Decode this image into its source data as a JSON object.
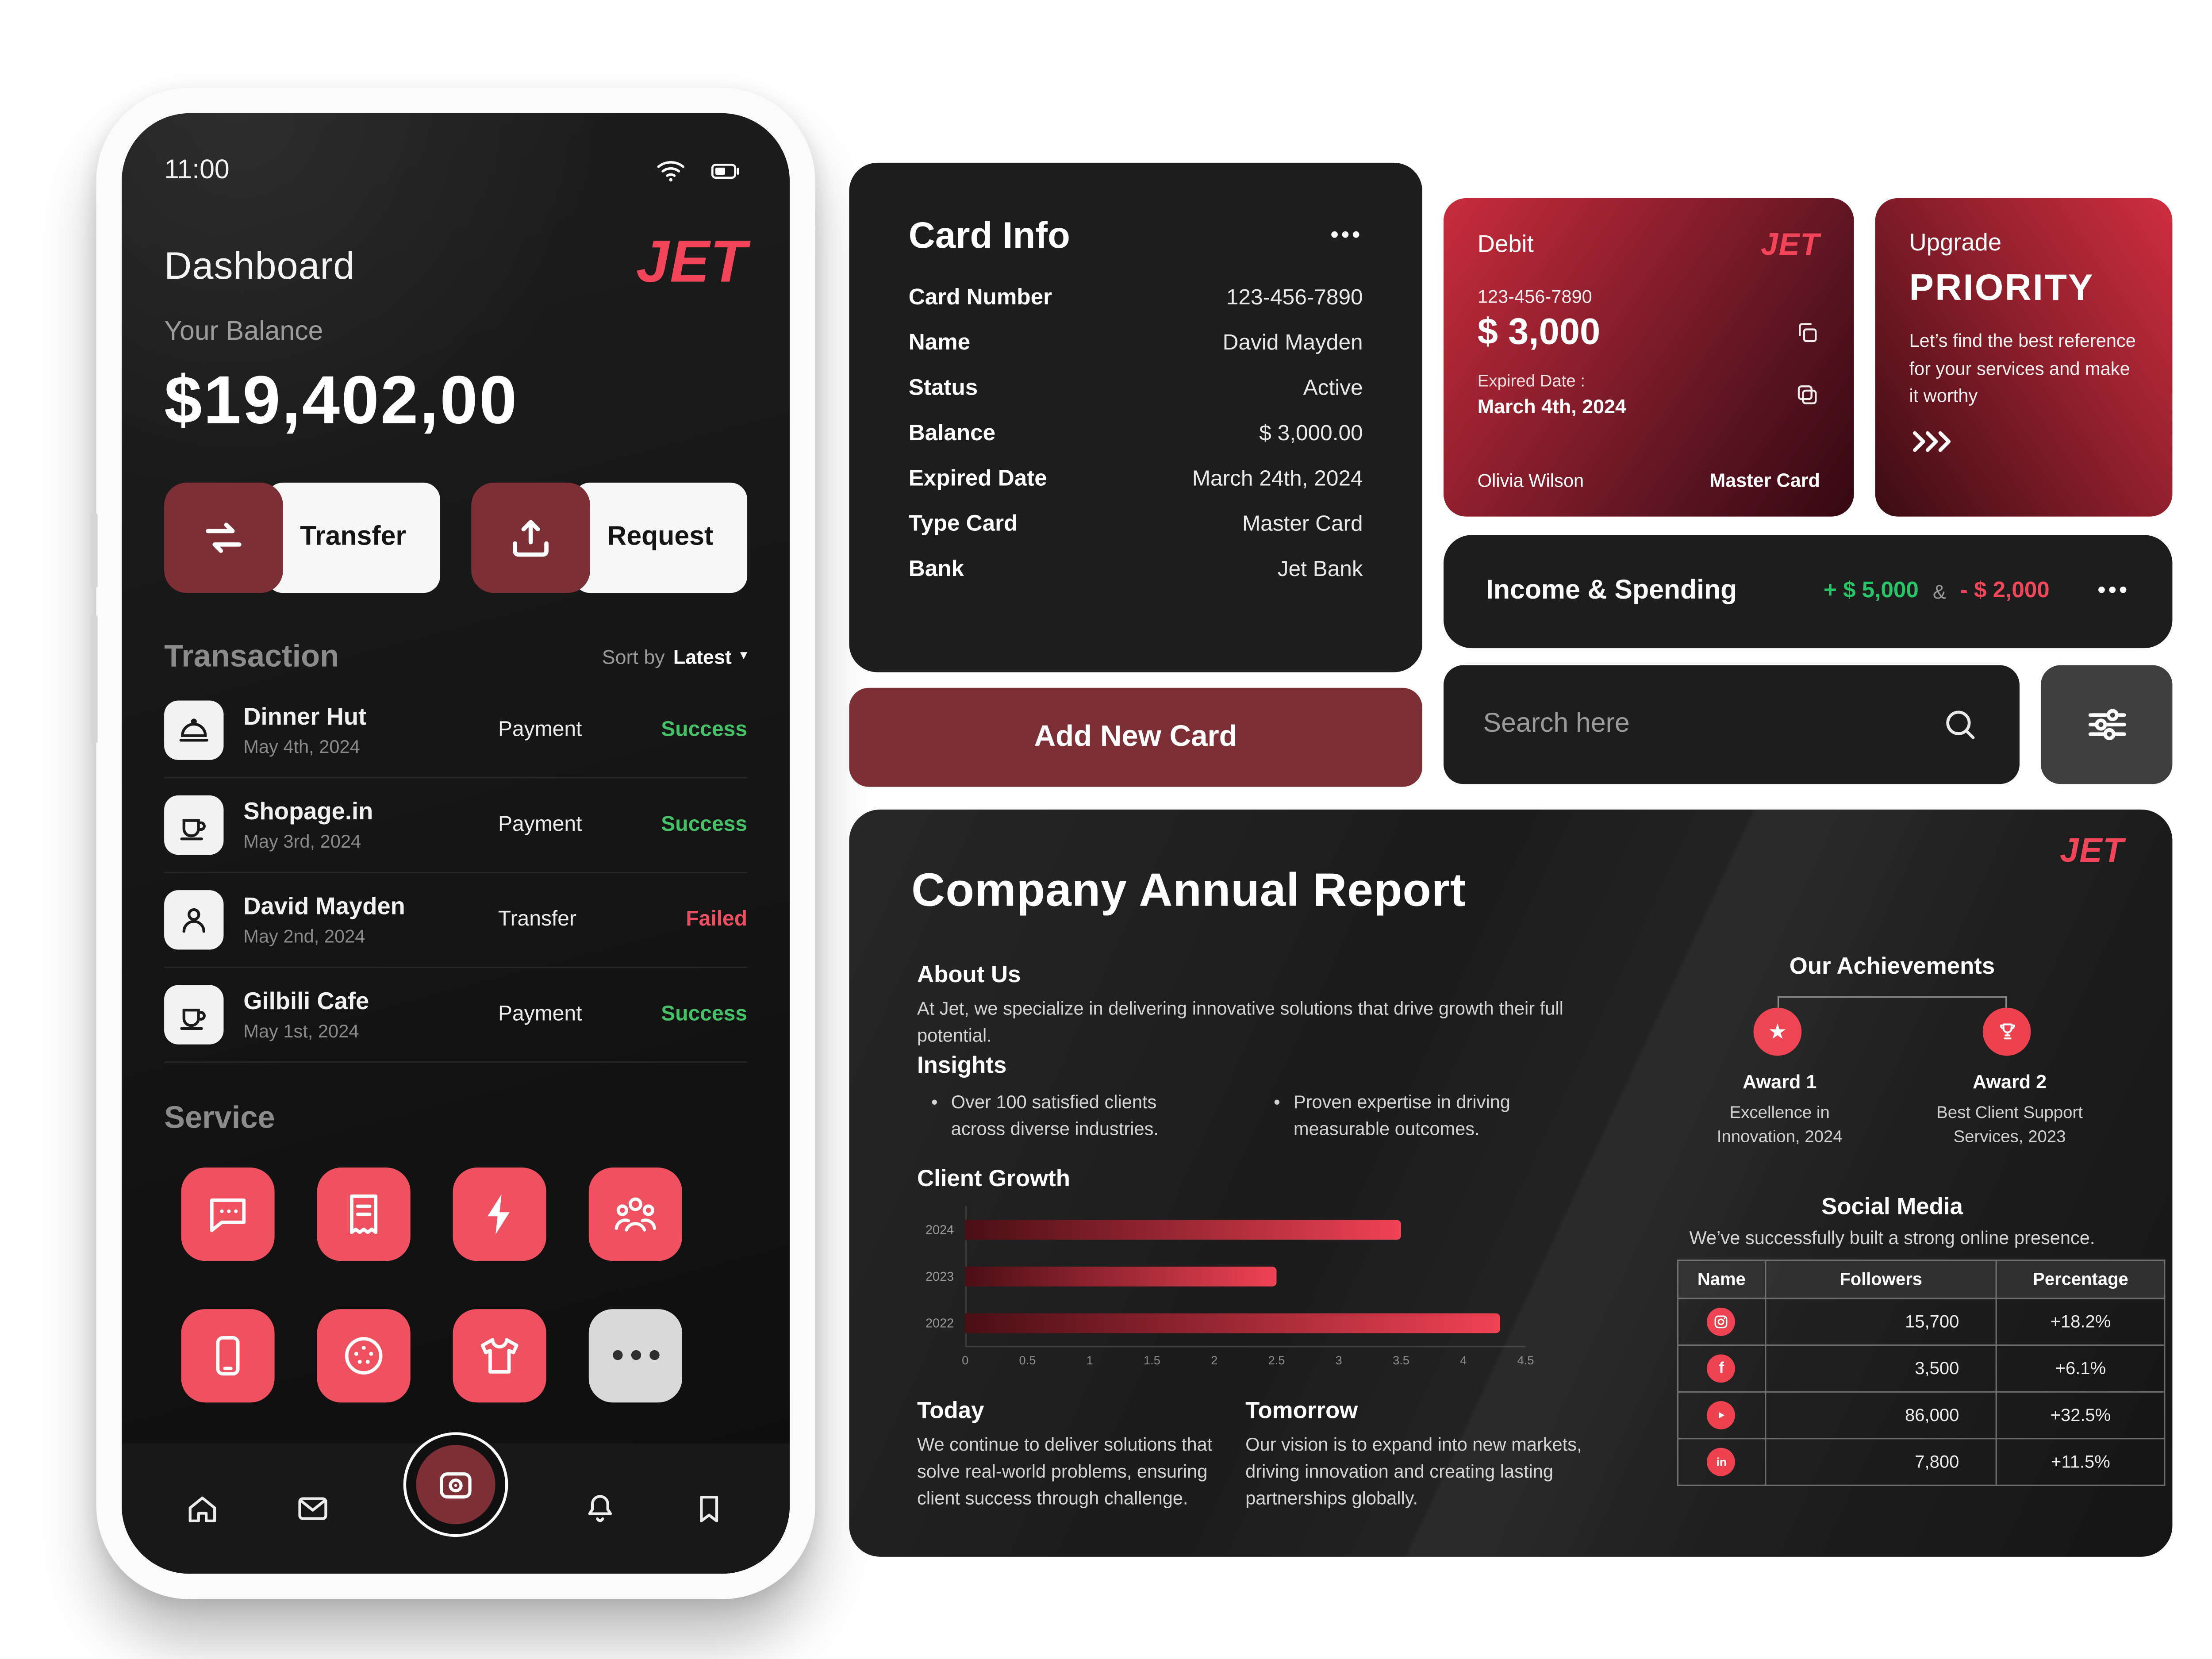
{
  "colors": {
    "accent_red": "#f2455a",
    "tile_red": "#ef5160",
    "dark_red": "#7d2f36",
    "success_green": "#45c268",
    "failed_red": "#ee4f63",
    "income_green": "#27c468",
    "spending_red": "#f2465a"
  },
  "phone": {
    "status_time": "11:00",
    "title": "Dashboard",
    "logo": "JET",
    "balance_label": "Your Balance",
    "balance": "$19,402,00",
    "transfer_label": "Transfer",
    "request_label": "Request",
    "transactions_title": "Transaction",
    "sort_label": "Sort by",
    "sort_value": "Latest",
    "sort_caret": "▾",
    "transactions": [
      {
        "name": "Dinner Hut",
        "date": "May 4th, 2024",
        "type": "Payment",
        "status": "Success"
      },
      {
        "name": "Shopage.in",
        "date": "May 3rd, 2024",
        "type": "Payment",
        "status": "Success"
      },
      {
        "name": "David Mayden",
        "date": "May 2nd, 2024",
        "type": "Transfer",
        "status": "Failed"
      },
      {
        "name": "Gilbili Cafe",
        "date": "May 1st, 2024",
        "type": "Payment",
        "status": "Success"
      }
    ],
    "service_title": "Service",
    "service_tiles": [
      "chat-icon",
      "bill-icon",
      "flash-icon",
      "team-icon",
      "phone-icon",
      "chip-icon",
      "shirt-icon",
      "more-icon"
    ],
    "nav_icons": [
      "home-icon",
      "mail-icon",
      "scan-icon",
      "bell-icon",
      "bookmark-icon"
    ]
  },
  "card_info": {
    "title": "Card Info",
    "menu": "•••",
    "rows": [
      {
        "label": "Card Number",
        "value": "123-456-7890"
      },
      {
        "label": "Name",
        "value": "David Mayden"
      },
      {
        "label": "Status",
        "value": "Active"
      },
      {
        "label": "Balance",
        "value": "$ 3,000.00"
      },
      {
        "label": "Expired Date",
        "value": "March 24th, 2024"
      },
      {
        "label": "Type Card",
        "value": "Master Card"
      },
      {
        "label": "Bank",
        "value": "Jet Bank"
      }
    ],
    "add_button": "Add New Card"
  },
  "debit_card": {
    "type": "Debit",
    "logo": "JET",
    "number": "123-456-7890",
    "balance": "$ 3,000",
    "expired_label": "Expired Date :",
    "expired_value": "March 4th, 2024",
    "holder": "Olivia Wilson",
    "network": "Master Card"
  },
  "upgrade_card": {
    "eyebrow": "Upgrade",
    "title": "PRIORITY",
    "body": "Let’s find the best reference for your services and make it worthy"
  },
  "income_spending": {
    "title": "Income & Spending",
    "income": "+ $ 5,000",
    "separator": "&",
    "spending": "- $ 2,000",
    "menu": "•••"
  },
  "search": {
    "placeholder": "Search here"
  },
  "report": {
    "logo": "JET",
    "title": "Company Annual Report",
    "about_title": "About Us",
    "about_body": "At Jet, we specialize in delivering innovative solutions that drive growth their full potential.",
    "insights_title": "Insights",
    "insight_1": "Over 100 satisfied clients across diverse industries.",
    "insight_2": "Proven expertise in driving measurable outcomes.",
    "today_title": "Today",
    "today_body": "We continue to deliver solutions that solve real-world problems, ensuring client success through challenge.",
    "tomorrow_title": "Tomorrow",
    "tomorrow_body": "Our vision is to expand into new markets, driving innovation and creating lasting partnerships globally.",
    "achievements_title": "Our Achievements",
    "awards": [
      {
        "name": "Award 1",
        "desc": "Excellence in Innovation, 2024"
      },
      {
        "name": "Award 2",
        "desc": "Best Client Support Services, 2023"
      }
    ],
    "social_title": "Social Media",
    "social_subtitle": "We’ve successfully built a strong online presence.",
    "table_headers": [
      "Name",
      "Followers",
      "Percentage"
    ],
    "social_rows": [
      {
        "network": "instagram",
        "followers": "15,700",
        "percentage": "+18.2%"
      },
      {
        "network": "facebook",
        "followers": "3,500",
        "percentage": "+6.1%"
      },
      {
        "network": "youtube",
        "followers": "86,000",
        "percentage": "+32.5%"
      },
      {
        "network": "linkedin",
        "followers": "7,800",
        "percentage": "+11.5%"
      }
    ]
  },
  "chart_data": {
    "type": "bar",
    "orientation": "horizontal",
    "title": "Client Growth",
    "categories": [
      "2024",
      "2023",
      "2022"
    ],
    "values": [
      3.5,
      2.5,
      4.3
    ],
    "xlim": [
      0,
      4.5
    ],
    "xticks": [
      0,
      0.5,
      1,
      1.5,
      2,
      2.5,
      3,
      3.5,
      4,
      4.5
    ],
    "bar_gradient": [
      "#4a0e15",
      "#f04254"
    ],
    "grid": false,
    "xlabel": "",
    "ylabel": ""
  }
}
